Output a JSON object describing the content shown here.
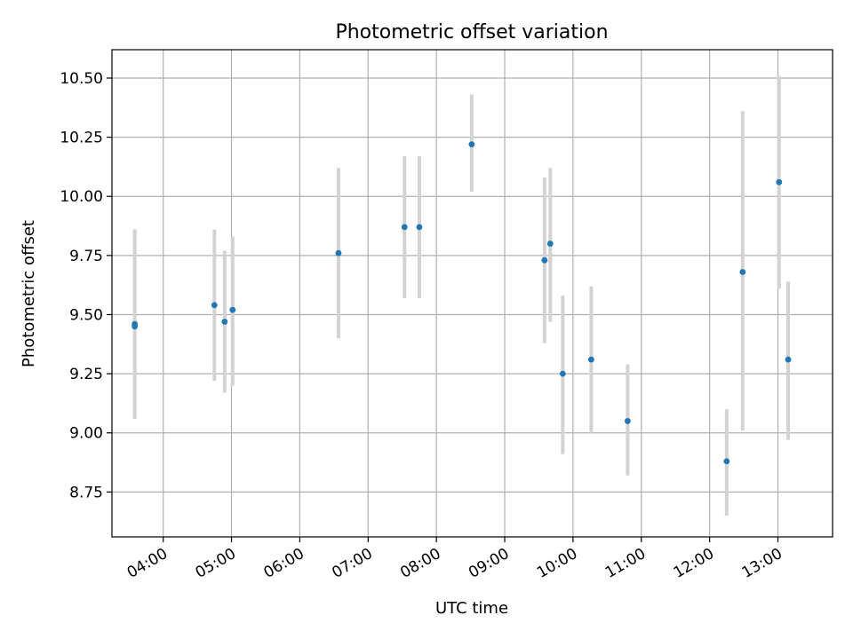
{
  "chart_data": {
    "type": "scatter",
    "title": "Photometric offset variation",
    "xlabel": "UTC time",
    "ylabel": "Photometric offset",
    "x_unit": "UTC time (HH:MM)",
    "xlim": [
      "03:15",
      "13:48"
    ],
    "ylim": [
      8.56,
      10.62
    ],
    "grid": true,
    "xticks": [
      "04:00",
      "05:00",
      "06:00",
      "07:00",
      "08:00",
      "09:00",
      "10:00",
      "11:00",
      "12:00",
      "13:00"
    ],
    "yticks": [
      "8.75",
      "9.00",
      "9.25",
      "9.50",
      "9.75",
      "10.00",
      "10.25",
      "10.50"
    ],
    "series": [
      {
        "marker_color": "#1f77b4",
        "errorbar_color": "#d3d3d3",
        "points": [
          {
            "x": "03:35",
            "y": 9.46,
            "yerr_low": 9.06,
            "yerr_high": 9.86
          },
          {
            "x": "03:35",
            "y": 9.45,
            "yerr_low": 9.06,
            "yerr_high": 9.86
          },
          {
            "x": "04:45",
            "y": 9.54,
            "yerr_low": 9.22,
            "yerr_high": 9.86
          },
          {
            "x": "04:54",
            "y": 9.47,
            "yerr_low": 9.17,
            "yerr_high": 9.77
          },
          {
            "x": "05:01",
            "y": 9.52,
            "yerr_low": 9.2,
            "yerr_high": 9.83
          },
          {
            "x": "06:34",
            "y": 9.76,
            "yerr_low": 9.4,
            "yerr_high": 10.12
          },
          {
            "x": "07:32",
            "y": 9.87,
            "yerr_low": 9.57,
            "yerr_high": 10.17
          },
          {
            "x": "07:45",
            "y": 9.87,
            "yerr_low": 9.57,
            "yerr_high": 10.17
          },
          {
            "x": "08:31",
            "y": 10.22,
            "yerr_low": 10.02,
            "yerr_high": 10.43
          },
          {
            "x": "09:35",
            "y": 9.73,
            "yerr_low": 9.38,
            "yerr_high": 10.08
          },
          {
            "x": "09:40",
            "y": 9.8,
            "yerr_low": 9.47,
            "yerr_high": 10.12
          },
          {
            "x": "09:51",
            "y": 9.25,
            "yerr_low": 8.91,
            "yerr_high": 9.58
          },
          {
            "x": "10:16",
            "y": 9.31,
            "yerr_low": 9.0,
            "yerr_high": 9.62
          },
          {
            "x": "10:48",
            "y": 9.05,
            "yerr_low": 8.82,
            "yerr_high": 9.29
          },
          {
            "x": "12:15",
            "y": 8.88,
            "yerr_low": 8.65,
            "yerr_high": 9.1
          },
          {
            "x": "12:29",
            "y": 9.68,
            "yerr_low": 9.01,
            "yerr_high": 10.36
          },
          {
            "x": "13:01",
            "y": 10.06,
            "yerr_low": 9.61,
            "yerr_high": 10.51
          },
          {
            "x": "13:09",
            "y": 9.31,
            "yerr_low": 8.97,
            "yerr_high": 9.64
          }
        ]
      }
    ]
  }
}
